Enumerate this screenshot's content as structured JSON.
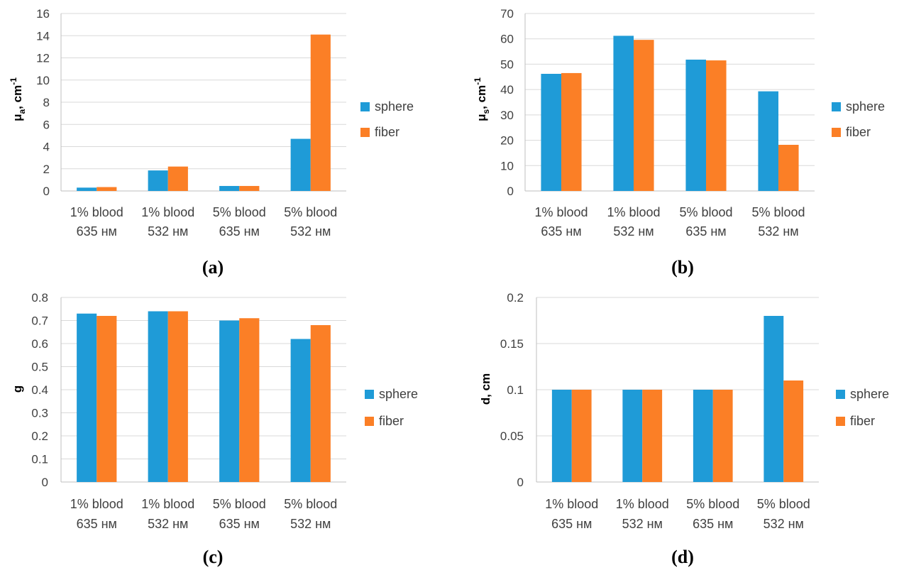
{
  "colors": {
    "sphere": "#1f9bd7",
    "fiber": "#fb7f26",
    "grid": "#d9d9d9",
    "axis": "#bfbfbf"
  },
  "chart_data": [
    {
      "type": "bar",
      "panel_label": "(a)",
      "ylabel": "μa, cm-1",
      "ylabel_main": "μ",
      "ylabel_sub": "a",
      "ylabel_mid": ", cm",
      "ylabel_sup": "-1",
      "categories": [
        [
          "1% blood",
          "635 нм"
        ],
        [
          "1% blood",
          "532 нм"
        ],
        [
          "5% blood",
          "635 нм"
        ],
        [
          "5% blood",
          "532 нм"
        ]
      ],
      "series": [
        {
          "name": "sphere",
          "values": [
            0.3,
            1.85,
            0.45,
            4.7
          ]
        },
        {
          "name": "fiber",
          "values": [
            0.35,
            2.2,
            0.45,
            14.1
          ]
        }
      ],
      "ylim": [
        0,
        16
      ],
      "yticks": [
        "0",
        "2",
        "4",
        "6",
        "8",
        "10",
        "12",
        "14",
        "16"
      ],
      "grid": true,
      "legend": "right"
    },
    {
      "type": "bar",
      "panel_label": "(b)",
      "ylabel": "μs, cm-1",
      "ylabel_main": "μ",
      "ylabel_sub": "s",
      "ylabel_mid": ", cm",
      "ylabel_sup": "-1",
      "categories": [
        [
          "1% blood",
          "635 нм"
        ],
        [
          "1% blood",
          "532 нм"
        ],
        [
          "5% blood",
          "635 нм"
        ],
        [
          "5% blood",
          "532 нм"
        ]
      ],
      "series": [
        {
          "name": "sphere",
          "values": [
            46.2,
            61.2,
            51.8,
            39.3
          ]
        },
        {
          "name": "fiber",
          "values": [
            46.5,
            59.6,
            51.5,
            18.2
          ]
        }
      ],
      "ylim": [
        0,
        70
      ],
      "yticks": [
        "0",
        "10",
        "20",
        "30",
        "40",
        "50",
        "60",
        "70"
      ],
      "grid": true,
      "legend": "right"
    },
    {
      "type": "bar",
      "panel_label": "(c)",
      "ylabel": "g",
      "categories": [
        [
          "1% blood",
          "635 нм"
        ],
        [
          "1% blood",
          "532 нм"
        ],
        [
          "5% blood",
          "635 нм"
        ],
        [
          "5% blood",
          "532 нм"
        ]
      ],
      "series": [
        {
          "name": "sphere",
          "values": [
            0.73,
            0.74,
            0.7,
            0.62
          ]
        },
        {
          "name": "fiber",
          "values": [
            0.72,
            0.74,
            0.71,
            0.68
          ]
        }
      ],
      "ylim": [
        0,
        0.8
      ],
      "yticks": [
        "0",
        "0.1",
        "0.2",
        "0.3",
        "0.4",
        "0.5",
        "0.6",
        "0.7",
        "0.8"
      ],
      "grid": true,
      "legend": "right"
    },
    {
      "type": "bar",
      "panel_label": "(d)",
      "ylabel": "d, cm",
      "categories": [
        [
          "1% blood",
          "635 нм"
        ],
        [
          "1% blood",
          "532 нм"
        ],
        [
          "5% blood",
          "635 нм"
        ],
        [
          "5% blood",
          "532 нм"
        ]
      ],
      "series": [
        {
          "name": "sphere",
          "values": [
            0.1,
            0.1,
            0.1,
            0.18
          ]
        },
        {
          "name": "fiber",
          "values": [
            0.1,
            0.1,
            0.1,
            0.11
          ]
        }
      ],
      "ylim": [
        0,
        0.2
      ],
      "yticks": [
        "0",
        "0.05",
        "0.1",
        "0.15",
        "0.2"
      ],
      "grid": true,
      "legend": "right"
    }
  ]
}
